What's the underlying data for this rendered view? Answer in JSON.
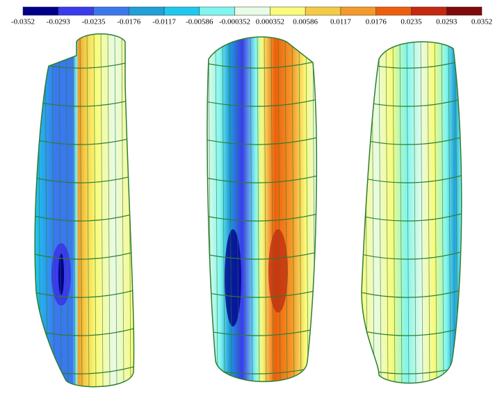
{
  "colorbar": {
    "labels": [
      "-0.0352",
      "-0.0293",
      "-0.0235",
      "-0.0176",
      "-0.0117",
      "-0.00586",
      "-0.000352",
      "0.000352",
      "0.00586",
      "0.0117",
      "0.0176",
      "0.0235",
      "0.0293",
      "0.0352"
    ],
    "colors": [
      "#00008b",
      "#3a3aef",
      "#3a78ee",
      "#1fa0d8",
      "#1ec8ee",
      "#80f5f0",
      "#e8fbe6",
      "#fbfb7a",
      "#f5cb45",
      "#f59a2a",
      "#ef5f0b",
      "#c4280f",
      "#7e0a0a"
    ]
  }
}
